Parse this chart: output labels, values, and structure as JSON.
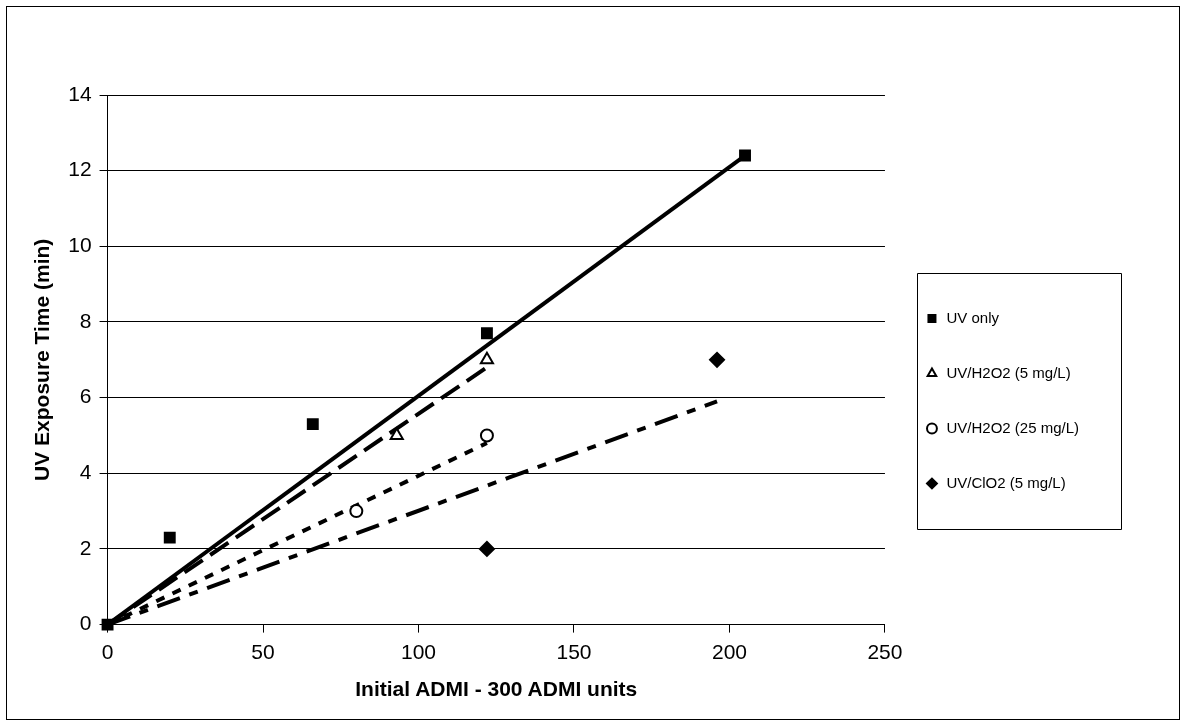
{
  "chart_data": {
    "type": "scatter",
    "xlabel": "Initial ADMI - 300 ADMI units",
    "ylabel": "UV Exposure Time (min)",
    "xlim": [
      0,
      250
    ],
    "xticks": [
      0,
      50,
      100,
      150,
      200,
      250
    ],
    "ylim": [
      0,
      14
    ],
    "yticks": [
      0,
      2,
      4,
      6,
      8,
      10,
      12,
      14
    ],
    "grid": "y",
    "legend": "right",
    "series": [
      {
        "name": "UV only",
        "type": "scatter",
        "marker": "square",
        "color": "#000000",
        "x": [
          0,
          20,
          66,
          122,
          205
        ],
        "values": [
          0,
          2.3,
          5.3,
          7.7,
          12.4
        ]
      },
      {
        "name": "UV/H2O2 (5 mg/L)",
        "type": "scatter",
        "marker": "triangle",
        "color": "#000000",
        "x": [
          93,
          122
        ],
        "values": [
          5,
          7
        ]
      },
      {
        "name": "UV/H2O2 (25 mg/L)",
        "type": "scatter",
        "marker": "circle",
        "color": "#000000",
        "x": [
          80,
          122
        ],
        "values": [
          3,
          5
        ]
      },
      {
        "name": "UV/ClO2 (5 mg/L)",
        "type": "scatter",
        "marker": "diamond",
        "color": "#000000",
        "x": [
          122,
          196
        ],
        "values": [
          2,
          7
        ]
      },
      {
        "type": "line",
        "line_style": "solid",
        "color": "#000000",
        "x": [
          0,
          205
        ],
        "values": [
          0,
          12.4
        ]
      },
      {
        "type": "line",
        "line_style": "dashed",
        "color": "#000000",
        "x": [
          0,
          122
        ],
        "values": [
          0,
          6.8
        ]
      },
      {
        "type": "line",
        "line_style": "dotted",
        "color": "#000000",
        "x": [
          0,
          122
        ],
        "values": [
          0,
          4.8
        ]
      },
      {
        "type": "line",
        "line_style": "dashdot",
        "color": "#000000",
        "x": [
          0,
          196
        ],
        "values": [
          0,
          5.9
        ]
      }
    ]
  }
}
